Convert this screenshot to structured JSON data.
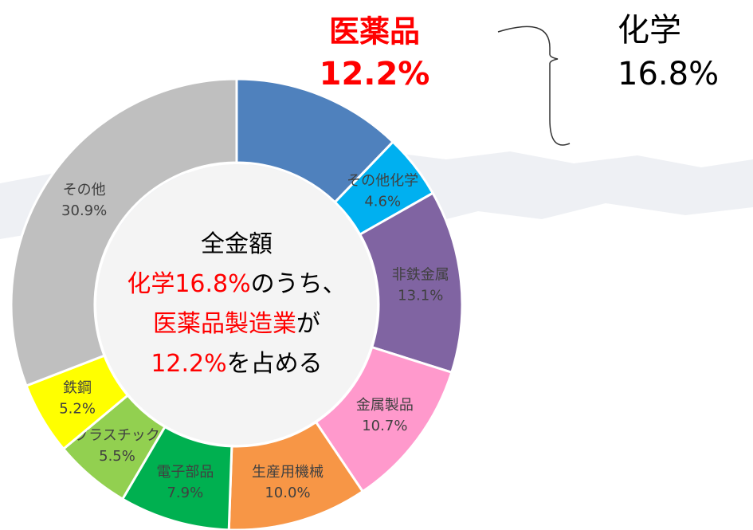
{
  "chart_data": {
    "type": "donut",
    "categories": [
      "医薬品",
      "その他化学",
      "非鉄金属",
      "金属製品",
      "生産用機械",
      "電子部品",
      "プラスチック",
      "鉄鋼",
      "その他"
    ],
    "values": [
      12.2,
      4.6,
      13.1,
      10.7,
      10.0,
      7.9,
      5.5,
      5.2,
      30.9
    ],
    "value_labels": [
      "12.2%",
      "4.6%",
      "13.1%",
      "10.7%",
      "10.0%",
      "7.9%",
      "5.5%",
      "5.2%",
      "30.9%"
    ],
    "colors": [
      "#4f81bd",
      "#00b0f0",
      "#8064a2",
      "#ff99cc",
      "#f79646",
      "#00b050",
      "#92d050",
      "#ffff00",
      "#bfbfbf"
    ],
    "highlight_color": "#ff0000",
    "center_text": [
      [
        "全金額"
      ],
      [
        "化学16.8%",
        "のうち、"
      ],
      [
        "医薬品製造業",
        "が"
      ],
      [
        "12.2%",
        "を占める"
      ]
    ],
    "annotation": {
      "label": "化学",
      "value_label": "16.8%"
    }
  }
}
